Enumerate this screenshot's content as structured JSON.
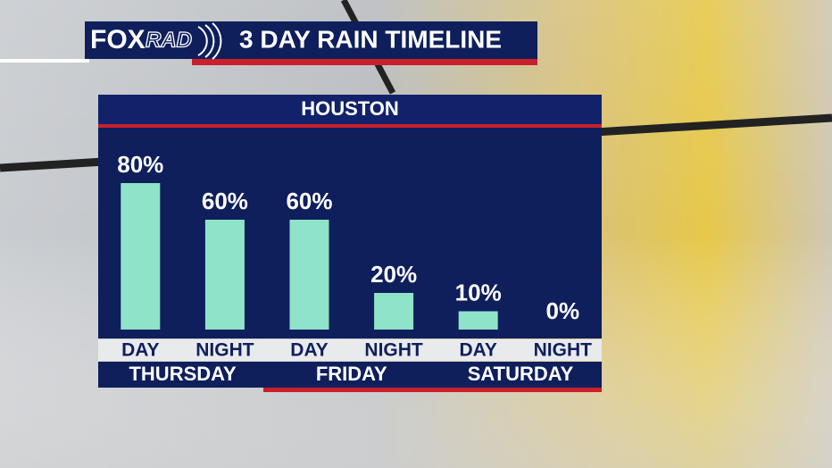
{
  "brand": [
    "FOX",
    "RAD"
  ],
  "chart_data": {
    "type": "bar",
    "title": "3 DAY RAIN TIMELINE",
    "subtitle": "HOUSTON",
    "categories": [
      "DAY",
      "NIGHT",
      "DAY",
      "NIGHT",
      "DAY",
      "NIGHT"
    ],
    "groups": [
      "THURSDAY",
      "FRIDAY",
      "SATURDAY"
    ],
    "values": [
      80,
      60,
      60,
      20,
      10,
      0
    ],
    "value_labels": [
      "80%",
      "60%",
      "60%",
      "20%",
      "10%",
      "0%"
    ],
    "color": "#8fe3c9"
  }
}
